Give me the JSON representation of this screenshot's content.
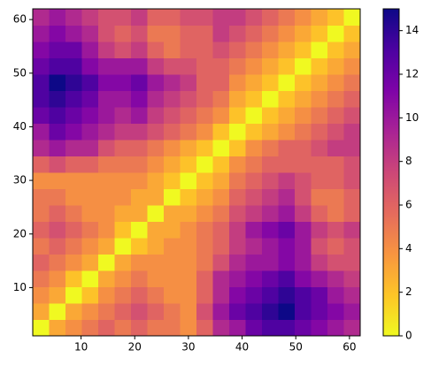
{
  "chart_data": {
    "type": "heatmap",
    "xlim": [
      1,
      62
    ],
    "ylim": [
      1,
      62
    ],
    "xticks": [
      10,
      20,
      30,
      40,
      50,
      60
    ],
    "yticks": [
      10,
      20,
      30,
      40,
      50,
      60
    ],
    "clim": [
      0,
      15
    ],
    "cticks": [
      0,
      2,
      4,
      6,
      8,
      10,
      12,
      14
    ],
    "colormap": [
      "#f0f921",
      "#fdc527",
      "#f89540",
      "#e56b5d",
      "#cc4778",
      "#a92395",
      "#7e03a8",
      "#4c02a1",
      "#0d0887"
    ],
    "z": [
      [
        0,
        3,
        4,
        5,
        6,
        5,
        6,
        5,
        5,
        4,
        6,
        9,
        10,
        12,
        13,
        13,
        12,
        11,
        10,
        9
      ],
      [
        3,
        0,
        3,
        4,
        5,
        6,
        7,
        6,
        5,
        4,
        7,
        10,
        12,
        13,
        14,
        15,
        13,
        12,
        11,
        10
      ],
      [
        4,
        3,
        0,
        2,
        4,
        5,
        6,
        5,
        4,
        4,
        6,
        9,
        11,
        12,
        13,
        14,
        13,
        12,
        10,
        9
      ],
      [
        5,
        4,
        2,
        0,
        3,
        4,
        5,
        4,
        4,
        4,
        6,
        9,
        10,
        11,
        12,
        13,
        11,
        10,
        9,
        8
      ],
      [
        6,
        5,
        4,
        3,
        0,
        3,
        4,
        4,
        4,
        4,
        5,
        7,
        9,
        10,
        10,
        11,
        10,
        8,
        7,
        7
      ],
      [
        5,
        6,
        5,
        4,
        3,
        0,
        2,
        3,
        4,
        4,
        5,
        6,
        8,
        9,
        10,
        11,
        10,
        7,
        6,
        7
      ],
      [
        6,
        7,
        6,
        5,
        4,
        2,
        0,
        3,
        3,
        4,
        5,
        6,
        8,
        10,
        11,
        12,
        10,
        8,
        7,
        8
      ],
      [
        5,
        6,
        5,
        4,
        4,
        3,
        3,
        0,
        3,
        3,
        4,
        5,
        7,
        8,
        9,
        10,
        8,
        6,
        5,
        6
      ],
      [
        5,
        5,
        4,
        4,
        4,
        4,
        3,
        3,
        0,
        2,
        3,
        4,
        6,
        7,
        8,
        9,
        7,
        5,
        5,
        6
      ],
      [
        4,
        4,
        4,
        4,
        4,
        4,
        4,
        3,
        2,
        0,
        2,
        3,
        5,
        6,
        7,
        8,
        7,
        6,
        6,
        7
      ],
      [
        6,
        7,
        6,
        6,
        5,
        5,
        5,
        4,
        3,
        2,
        0,
        2,
        4,
        5,
        6,
        6,
        6,
        6,
        6,
        7
      ],
      [
        9,
        10,
        9,
        9,
        7,
        6,
        6,
        5,
        4,
        3,
        2,
        0,
        2,
        4,
        5,
        6,
        6,
        7,
        8,
        8
      ],
      [
        10,
        12,
        11,
        10,
        9,
        8,
        8,
        7,
        6,
        5,
        4,
        2,
        0,
        2,
        3,
        4,
        5,
        6,
        7,
        8
      ],
      [
        12,
        13,
        12,
        11,
        10,
        9,
        10,
        8,
        7,
        6,
        5,
        4,
        2,
        0,
        2,
        3,
        4,
        5,
        6,
        7
      ],
      [
        13,
        14,
        13,
        12,
        10,
        10,
        11,
        9,
        8,
        7,
        6,
        5,
        3,
        2,
        0,
        2,
        3,
        4,
        5,
        6
      ],
      [
        13,
        15,
        14,
        13,
        11,
        11,
        12,
        10,
        9,
        8,
        6,
        6,
        4,
        3,
        2,
        0,
        2,
        3,
        4,
        5
      ],
      [
        12,
        13,
        13,
        11,
        10,
        10,
        10,
        8,
        7,
        7,
        6,
        6,
        5,
        4,
        3,
        2,
        0,
        2,
        3,
        4
      ],
      [
        11,
        12,
        12,
        10,
        8,
        7,
        8,
        6,
        5,
        6,
        6,
        7,
        6,
        5,
        4,
        3,
        2,
        0,
        2,
        3
      ],
      [
        10,
        11,
        10,
        9,
        7,
        6,
        7,
        5,
        5,
        6,
        6,
        8,
        7,
        6,
        5,
        4,
        3,
        2,
        0,
        2
      ],
      [
        9,
        10,
        9,
        8,
        7,
        7,
        8,
        6,
        6,
        7,
        7,
        8,
        8,
        7,
        6,
        5,
        4,
        3,
        2,
        0
      ]
    ]
  }
}
